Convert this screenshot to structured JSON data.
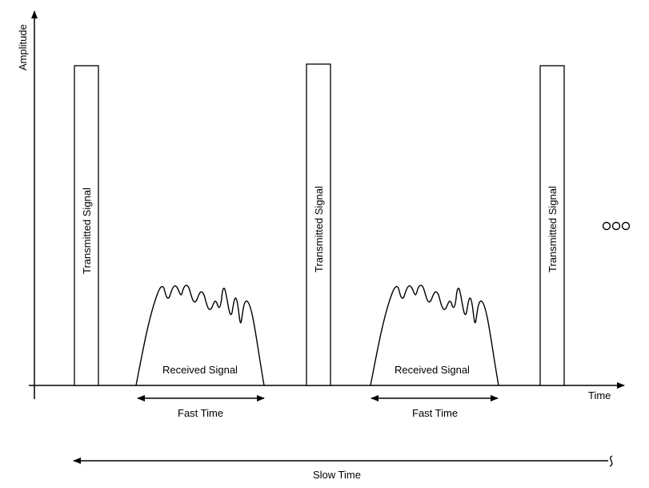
{
  "axes": {
    "y_label": "Amplitude",
    "x_label": "Time"
  },
  "pulses": [
    {
      "label": "Transmitted Signal"
    },
    {
      "label": "Transmitted Signal"
    },
    {
      "label": "Transmitted Signal"
    }
  ],
  "echoes": [
    {
      "label": "Received Signal"
    },
    {
      "label": "Received Signal"
    }
  ],
  "fast_time": [
    {
      "label": "Fast Time"
    },
    {
      "label": "Fast Time"
    }
  ],
  "slow_time": {
    "label": "Slow Time"
  },
  "continuation": {
    "symbol": "ooo"
  }
}
